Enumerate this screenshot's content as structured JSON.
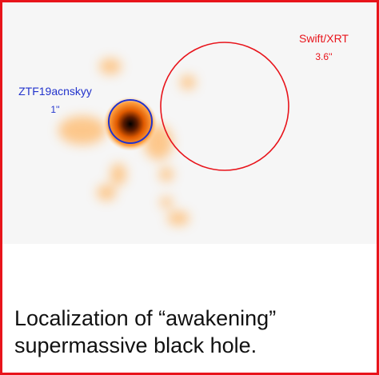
{
  "image": {
    "xrt_label": {
      "name": "Swift/XRT",
      "radius": "3.6''"
    },
    "ztf_label": {
      "name": "ZTF19acnskyy",
      "radius": "1''"
    }
  },
  "caption": {
    "lines": [
      "Localization of “awakening”",
      "supermassive black hole."
    ]
  }
}
